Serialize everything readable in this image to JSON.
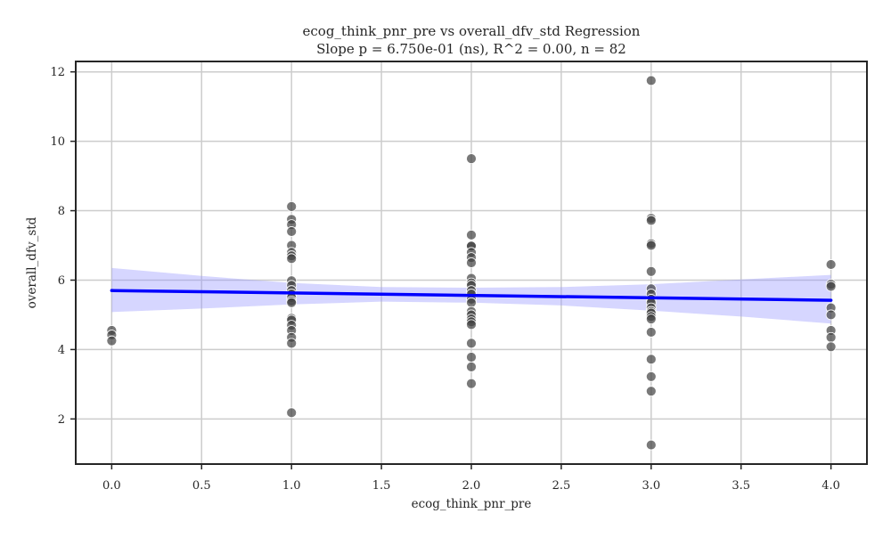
{
  "chart_data": {
    "type": "scatter",
    "title": "ecog_think_pnr_pre vs overall_dfv_std Regression",
    "subtitle": "Slope p = 6.750e-01 (ns), R^2 = 0.00, n = 82",
    "xlabel": "ecog_think_pnr_pre",
    "ylabel": "overall_dfv_std",
    "xlim": [
      -0.2,
      4.2
    ],
    "ylim": [
      0.7,
      12.3
    ],
    "xticks": [
      0.0,
      0.5,
      1.0,
      1.5,
      2.0,
      2.5,
      3.0,
      3.5,
      4.0
    ],
    "xtick_labels": [
      "0.0",
      "0.5",
      "1.0",
      "1.5",
      "2.0",
      "2.5",
      "3.0",
      "3.5",
      "4.0"
    ],
    "yticks": [
      2,
      4,
      6,
      8,
      10,
      12
    ],
    "ytick_labels": [
      "2",
      "4",
      "6",
      "8",
      "10",
      "12"
    ],
    "grid": true,
    "colors": {
      "points": "#404040",
      "regression_line": "#0000ff",
      "confidence_band": "#9999ff",
      "grid": "#cccccc",
      "axes": "#262626"
    },
    "points": [
      {
        "x": 0,
        "y": 4.55
      },
      {
        "x": 0,
        "y": 4.42
      },
      {
        "x": 0,
        "y": 4.25
      },
      {
        "x": 1,
        "y": 8.12
      },
      {
        "x": 1,
        "y": 7.75
      },
      {
        "x": 1,
        "y": 7.6
      },
      {
        "x": 1,
        "y": 7.4
      },
      {
        "x": 1,
        "y": 7.0
      },
      {
        "x": 1,
        "y": 6.8
      },
      {
        "x": 1,
        "y": 6.7
      },
      {
        "x": 1,
        "y": 6.62
      },
      {
        "x": 1,
        "y": 5.98
      },
      {
        "x": 1,
        "y": 5.85
      },
      {
        "x": 1,
        "y": 5.7
      },
      {
        "x": 1,
        "y": 5.6
      },
      {
        "x": 1,
        "y": 5.5
      },
      {
        "x": 1,
        "y": 5.4
      },
      {
        "x": 1,
        "y": 5.35
      },
      {
        "x": 1,
        "y": 4.9
      },
      {
        "x": 1,
        "y": 4.85
      },
      {
        "x": 1,
        "y": 4.7
      },
      {
        "x": 1,
        "y": 4.55
      },
      {
        "x": 1,
        "y": 4.35
      },
      {
        "x": 1,
        "y": 4.18
      },
      {
        "x": 1,
        "y": 2.18
      },
      {
        "x": 2,
        "y": 9.5
      },
      {
        "x": 2,
        "y": 7.3
      },
      {
        "x": 2,
        "y": 7.0
      },
      {
        "x": 2,
        "y": 6.98
      },
      {
        "x": 2,
        "y": 6.8
      },
      {
        "x": 2,
        "y": 6.65
      },
      {
        "x": 2,
        "y": 6.5
      },
      {
        "x": 2,
        "y": 6.05
      },
      {
        "x": 2,
        "y": 5.92
      },
      {
        "x": 2,
        "y": 5.85
      },
      {
        "x": 2,
        "y": 5.7
      },
      {
        "x": 2,
        "y": 5.6
      },
      {
        "x": 2,
        "y": 5.45
      },
      {
        "x": 2,
        "y": 5.35
      },
      {
        "x": 2,
        "y": 5.1
      },
      {
        "x": 2,
        "y": 5.0
      },
      {
        "x": 2,
        "y": 4.88
      },
      {
        "x": 2,
        "y": 4.8
      },
      {
        "x": 2,
        "y": 4.72
      },
      {
        "x": 2,
        "y": 4.18
      },
      {
        "x": 2,
        "y": 3.78
      },
      {
        "x": 2,
        "y": 3.5
      },
      {
        "x": 2,
        "y": 3.02
      },
      {
        "x": 3,
        "y": 11.75
      },
      {
        "x": 3,
        "y": 7.78
      },
      {
        "x": 3,
        "y": 7.72
      },
      {
        "x": 3,
        "y": 7.05
      },
      {
        "x": 3,
        "y": 7.0
      },
      {
        "x": 3,
        "y": 6.25
      },
      {
        "x": 3,
        "y": 5.75
      },
      {
        "x": 3,
        "y": 5.6
      },
      {
        "x": 3,
        "y": 5.45
      },
      {
        "x": 3,
        "y": 5.35
      },
      {
        "x": 3,
        "y": 5.2
      },
      {
        "x": 3,
        "y": 5.1
      },
      {
        "x": 3,
        "y": 5.05
      },
      {
        "x": 3,
        "y": 4.95
      },
      {
        "x": 3,
        "y": 4.88
      },
      {
        "x": 3,
        "y": 4.5
      },
      {
        "x": 3,
        "y": 3.72
      },
      {
        "x": 3,
        "y": 3.22
      },
      {
        "x": 3,
        "y": 2.8
      },
      {
        "x": 3,
        "y": 1.25
      },
      {
        "x": 4,
        "y": 6.45
      },
      {
        "x": 4,
        "y": 5.88
      },
      {
        "x": 4,
        "y": 5.82
      },
      {
        "x": 4,
        "y": 5.2
      },
      {
        "x": 4,
        "y": 5.0
      },
      {
        "x": 4,
        "y": 4.55
      },
      {
        "x": 4,
        "y": 4.35
      },
      {
        "x": 4,
        "y": 4.08
      }
    ],
    "regression": {
      "x": [
        0,
        4
      ],
      "y": [
        5.7,
        5.42
      ]
    },
    "confidence_band": {
      "x": [
        0,
        0.5,
        1.0,
        1.5,
        2.0,
        2.5,
        3.0,
        3.5,
        4.0
      ],
      "upper": [
        6.35,
        6.12,
        5.92,
        5.8,
        5.78,
        5.8,
        5.88,
        6.02,
        6.15
      ],
      "lower": [
        5.08,
        5.18,
        5.3,
        5.38,
        5.35,
        5.27,
        5.12,
        4.95,
        4.75
      ]
    }
  }
}
